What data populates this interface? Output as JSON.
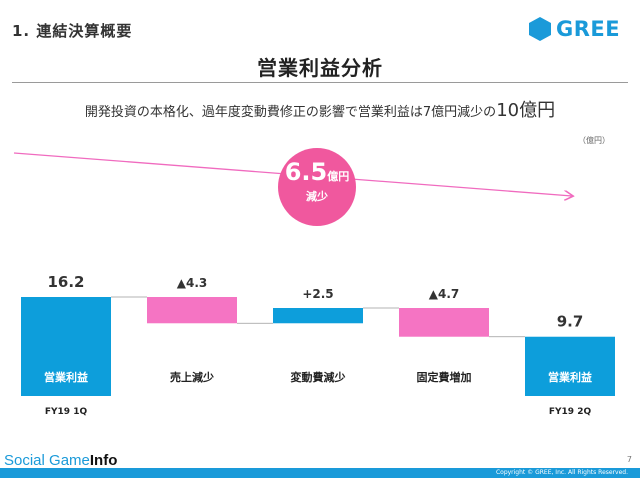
{
  "header": {
    "section_label": "1. 連結決算概要",
    "brand": "GREE",
    "brand_color": "#1a9ad9"
  },
  "title": "営業利益分析",
  "subtitle": {
    "text": "開発投資の本格化、過年度変動費修正の影響で営業利益は7億円減少の",
    "emphasis": "10億円"
  },
  "unit_label": "（億円）",
  "badge": {
    "value": "6.5",
    "unit": "億円",
    "label": "減少",
    "color": "#f0589e"
  },
  "chart_data": {
    "type": "bar",
    "subtype": "waterfall",
    "categories": [
      "営業利益",
      "売上減少",
      "変動費減少",
      "固定費増加",
      "営業利益"
    ],
    "values": [
      16.2,
      -4.3,
      2.5,
      -4.7,
      9.7
    ],
    "value_labels": [
      "16.2",
      "▲4.3",
      "+2.5",
      "▲4.7",
      "9.7"
    ],
    "kinds": [
      "total",
      "decrease",
      "increase",
      "decrease",
      "total"
    ],
    "period_labels": [
      "FY19 1Q",
      "",
      "",
      "",
      "FY19 2Q"
    ],
    "colors": {
      "total": "#0d9edb",
      "decrease": "#f574c3",
      "increase": "#0d9edb"
    },
    "ylim": [
      0,
      16.2
    ],
    "grid": false,
    "legend": "none"
  },
  "footer": {
    "copyright": "Copyright © GREE, Inc. All Rights Reserved.",
    "page": "7",
    "watermark_main": "Social Game",
    "watermark_bold": "Info"
  }
}
